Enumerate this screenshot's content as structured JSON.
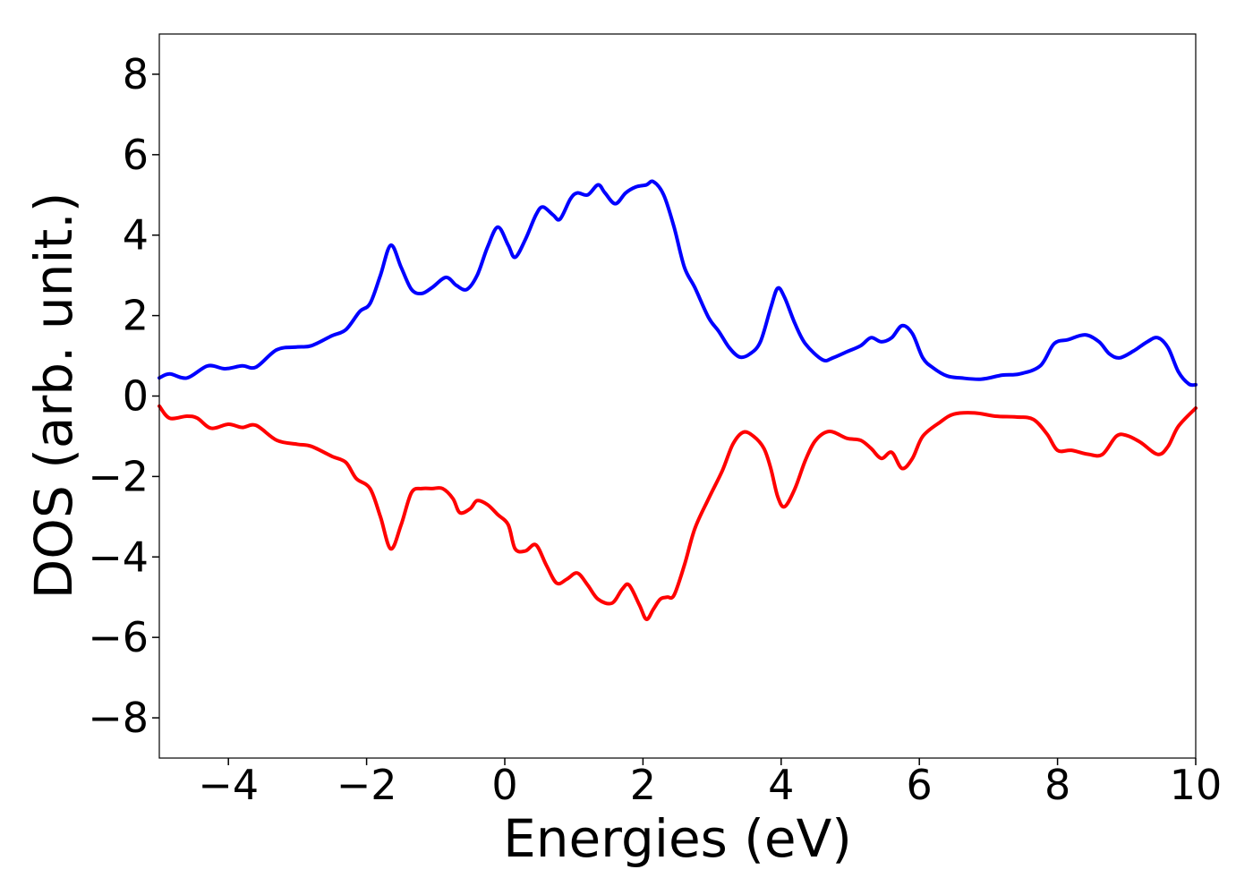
{
  "chart_data": {
    "type": "line",
    "title": "",
    "xlabel": "Energies (eV)",
    "ylabel": "DOS (arb. unit.)",
    "xlim": [
      -5,
      10
    ],
    "ylim": [
      -9,
      9
    ],
    "grid": false,
    "x_ticks": [
      -4,
      -2,
      0,
      2,
      4,
      6,
      8,
      10
    ],
    "x_tick_labels": [
      "−4",
      "−2",
      "0",
      "2",
      "4",
      "6",
      "8",
      "10"
    ],
    "y_ticks": [
      8,
      6,
      4,
      2,
      0,
      -2,
      -4,
      -6,
      -8
    ],
    "y_tick_labels": [
      "8",
      "6",
      "4",
      "2",
      "0",
      "−2",
      "−4",
      "−6",
      "−8"
    ],
    "series": [
      {
        "color": "#0000ff",
        "points": [
          [
            -5.0,
            0.45
          ],
          [
            -4.85,
            0.55
          ],
          [
            -4.6,
            0.45
          ],
          [
            -4.3,
            0.75
          ],
          [
            -4.05,
            0.68
          ],
          [
            -3.8,
            0.75
          ],
          [
            -3.6,
            0.72
          ],
          [
            -3.3,
            1.15
          ],
          [
            -3.0,
            1.22
          ],
          [
            -2.8,
            1.25
          ],
          [
            -2.5,
            1.5
          ],
          [
            -2.3,
            1.65
          ],
          [
            -2.1,
            2.1
          ],
          [
            -1.95,
            2.3
          ],
          [
            -1.8,
            3.0
          ],
          [
            -1.65,
            3.75
          ],
          [
            -1.5,
            3.2
          ],
          [
            -1.35,
            2.65
          ],
          [
            -1.2,
            2.55
          ],
          [
            -1.05,
            2.7
          ],
          [
            -0.85,
            2.95
          ],
          [
            -0.7,
            2.75
          ],
          [
            -0.55,
            2.65
          ],
          [
            -0.4,
            3.0
          ],
          [
            -0.25,
            3.7
          ],
          [
            -0.1,
            4.2
          ],
          [
            0.05,
            3.75
          ],
          [
            0.15,
            3.45
          ],
          [
            0.3,
            3.9
          ],
          [
            0.45,
            4.5
          ],
          [
            0.55,
            4.7
          ],
          [
            0.7,
            4.5
          ],
          [
            0.8,
            4.4
          ],
          [
            0.95,
            4.9
          ],
          [
            1.05,
            5.05
          ],
          [
            1.2,
            5.0
          ],
          [
            1.35,
            5.25
          ],
          [
            1.45,
            5.05
          ],
          [
            1.6,
            4.78
          ],
          [
            1.75,
            5.05
          ],
          [
            1.9,
            5.2
          ],
          [
            2.05,
            5.25
          ],
          [
            2.15,
            5.33
          ],
          [
            2.3,
            5.0
          ],
          [
            2.45,
            4.2
          ],
          [
            2.6,
            3.2
          ],
          [
            2.75,
            2.7
          ],
          [
            2.95,
            1.95
          ],
          [
            3.1,
            1.6
          ],
          [
            3.25,
            1.2
          ],
          [
            3.4,
            0.97
          ],
          [
            3.55,
            1.05
          ],
          [
            3.7,
            1.35
          ],
          [
            3.85,
            2.2
          ],
          [
            3.95,
            2.68
          ],
          [
            4.05,
            2.45
          ],
          [
            4.2,
            1.8
          ],
          [
            4.35,
            1.3
          ],
          [
            4.6,
            0.9
          ],
          [
            4.75,
            0.95
          ],
          [
            4.95,
            1.1
          ],
          [
            5.15,
            1.25
          ],
          [
            5.3,
            1.45
          ],
          [
            5.45,
            1.35
          ],
          [
            5.6,
            1.45
          ],
          [
            5.75,
            1.75
          ],
          [
            5.9,
            1.55
          ],
          [
            6.05,
            0.95
          ],
          [
            6.2,
            0.7
          ],
          [
            6.4,
            0.5
          ],
          [
            6.6,
            0.45
          ],
          [
            6.9,
            0.42
          ],
          [
            7.2,
            0.52
          ],
          [
            7.45,
            0.55
          ],
          [
            7.75,
            0.75
          ],
          [
            7.95,
            1.3
          ],
          [
            8.15,
            1.4
          ],
          [
            8.4,
            1.52
          ],
          [
            8.6,
            1.35
          ],
          [
            8.75,
            1.05
          ],
          [
            8.9,
            0.95
          ],
          [
            9.1,
            1.12
          ],
          [
            9.3,
            1.35
          ],
          [
            9.45,
            1.45
          ],
          [
            9.6,
            1.2
          ],
          [
            9.75,
            0.6
          ],
          [
            9.9,
            0.3
          ],
          [
            10.0,
            0.28
          ]
        ]
      },
      {
        "color": "#ff0000",
        "points": [
          [
            -5.0,
            -0.25
          ],
          [
            -4.85,
            -0.55
          ],
          [
            -4.6,
            -0.5
          ],
          [
            -4.45,
            -0.55
          ],
          [
            -4.25,
            -0.8
          ],
          [
            -4.0,
            -0.7
          ],
          [
            -3.8,
            -0.78
          ],
          [
            -3.6,
            -0.73
          ],
          [
            -3.3,
            -1.1
          ],
          [
            -3.0,
            -1.2
          ],
          [
            -2.8,
            -1.25
          ],
          [
            -2.5,
            -1.5
          ],
          [
            -2.3,
            -1.65
          ],
          [
            -2.15,
            -2.05
          ],
          [
            -1.95,
            -2.3
          ],
          [
            -1.8,
            -3.0
          ],
          [
            -1.65,
            -3.8
          ],
          [
            -1.5,
            -3.2
          ],
          [
            -1.35,
            -2.4
          ],
          [
            -1.2,
            -2.3
          ],
          [
            -1.05,
            -2.3
          ],
          [
            -0.9,
            -2.3
          ],
          [
            -0.75,
            -2.55
          ],
          [
            -0.65,
            -2.9
          ],
          [
            -0.5,
            -2.8
          ],
          [
            -0.4,
            -2.6
          ],
          [
            -0.25,
            -2.7
          ],
          [
            -0.1,
            -2.95
          ],
          [
            0.05,
            -3.2
          ],
          [
            0.15,
            -3.8
          ],
          [
            0.3,
            -3.85
          ],
          [
            0.45,
            -3.7
          ],
          [
            0.6,
            -4.2
          ],
          [
            0.75,
            -4.65
          ],
          [
            0.9,
            -4.55
          ],
          [
            1.05,
            -4.4
          ],
          [
            1.2,
            -4.7
          ],
          [
            1.35,
            -5.05
          ],
          [
            1.55,
            -5.15
          ],
          [
            1.7,
            -4.8
          ],
          [
            1.8,
            -4.7
          ],
          [
            1.95,
            -5.2
          ],
          [
            2.05,
            -5.55
          ],
          [
            2.15,
            -5.3
          ],
          [
            2.25,
            -5.05
          ],
          [
            2.35,
            -5.0
          ],
          [
            2.45,
            -4.95
          ],
          [
            2.6,
            -4.2
          ],
          [
            2.75,
            -3.3
          ],
          [
            2.95,
            -2.55
          ],
          [
            3.15,
            -1.85
          ],
          [
            3.3,
            -1.2
          ],
          [
            3.45,
            -0.9
          ],
          [
            3.6,
            -1.0
          ],
          [
            3.75,
            -1.3
          ],
          [
            3.85,
            -1.8
          ],
          [
            3.95,
            -2.5
          ],
          [
            4.05,
            -2.75
          ],
          [
            4.2,
            -2.3
          ],
          [
            4.35,
            -1.6
          ],
          [
            4.5,
            -1.1
          ],
          [
            4.7,
            -0.88
          ],
          [
            4.95,
            -1.05
          ],
          [
            5.15,
            -1.1
          ],
          [
            5.3,
            -1.3
          ],
          [
            5.45,
            -1.55
          ],
          [
            5.6,
            -1.4
          ],
          [
            5.75,
            -1.8
          ],
          [
            5.9,
            -1.55
          ],
          [
            6.05,
            -1.0
          ],
          [
            6.3,
            -0.65
          ],
          [
            6.5,
            -0.45
          ],
          [
            6.8,
            -0.42
          ],
          [
            7.1,
            -0.5
          ],
          [
            7.4,
            -0.52
          ],
          [
            7.65,
            -0.58
          ],
          [
            7.85,
            -0.95
          ],
          [
            8.0,
            -1.35
          ],
          [
            8.2,
            -1.35
          ],
          [
            8.45,
            -1.45
          ],
          [
            8.65,
            -1.45
          ],
          [
            8.85,
            -1.0
          ],
          [
            9.0,
            -0.98
          ],
          [
            9.2,
            -1.15
          ],
          [
            9.45,
            -1.45
          ],
          [
            9.6,
            -1.25
          ],
          [
            9.75,
            -0.75
          ],
          [
            10.0,
            -0.3
          ]
        ]
      }
    ]
  }
}
